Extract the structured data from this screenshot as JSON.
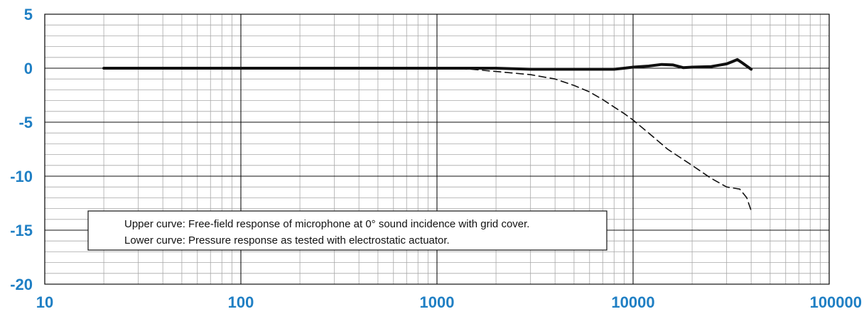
{
  "chart_data": {
    "type": "line",
    "x_scale": "log",
    "xlim": [
      10,
      100000
    ],
    "ylim": [
      -20,
      5
    ],
    "x_ticks": [
      10,
      100,
      1000,
      10000,
      100000
    ],
    "x_tick_labels": [
      "10",
      "100",
      "1000",
      "10000",
      "100000"
    ],
    "y_ticks": [
      5,
      0,
      -5,
      -10,
      -15,
      -20
    ],
    "y_tick_labels": [
      "5",
      "0",
      "-5",
      "-10",
      "-15",
      "-20"
    ],
    "grid": true,
    "tick_color": "#1f7fc4",
    "legend": {
      "placement": "bottom-left",
      "lines": [
        "Upper curve: Free-field response of microphone at 0° sound incidence with grid cover.",
        "Lower curve: Pressure response as tested with electrostatic actuator."
      ]
    },
    "series": [
      {
        "style": "solid",
        "color": "#111111",
        "x": [
          20,
          30,
          50,
          100,
          200,
          500,
          1000,
          1500,
          2000,
          3000,
          4000,
          5000,
          6000,
          7000,
          8000,
          9000,
          10000,
          12000,
          14000,
          16000,
          18000,
          20000,
          25000,
          30000,
          32000,
          34000,
          36000,
          40000
        ],
        "y": [
          0,
          0,
          0,
          0,
          0,
          0,
          0,
          0,
          0,
          -0.1,
          -0.1,
          -0.1,
          -0.1,
          -0.1,
          -0.1,
          0,
          0.1,
          0.2,
          0.35,
          0.3,
          0.05,
          0.1,
          0.15,
          0.4,
          0.6,
          0.8,
          0.5,
          -0.1
        ]
      },
      {
        "style": "dashed",
        "color": "#111111",
        "x": [
          1000,
          1500,
          2000,
          3000,
          4000,
          5000,
          6000,
          7000,
          8000,
          9000,
          10000,
          12000,
          15000,
          20000,
          25000,
          30000,
          35000,
          38000,
          40000
        ],
        "y": [
          0,
          -0.1,
          -0.3,
          -0.6,
          -1.0,
          -1.6,
          -2.2,
          -2.9,
          -3.6,
          -4.2,
          -4.8,
          -6.0,
          -7.5,
          -9.0,
          -10.2,
          -11.0,
          -11.2,
          -12.0,
          -13.2
        ]
      }
    ]
  }
}
